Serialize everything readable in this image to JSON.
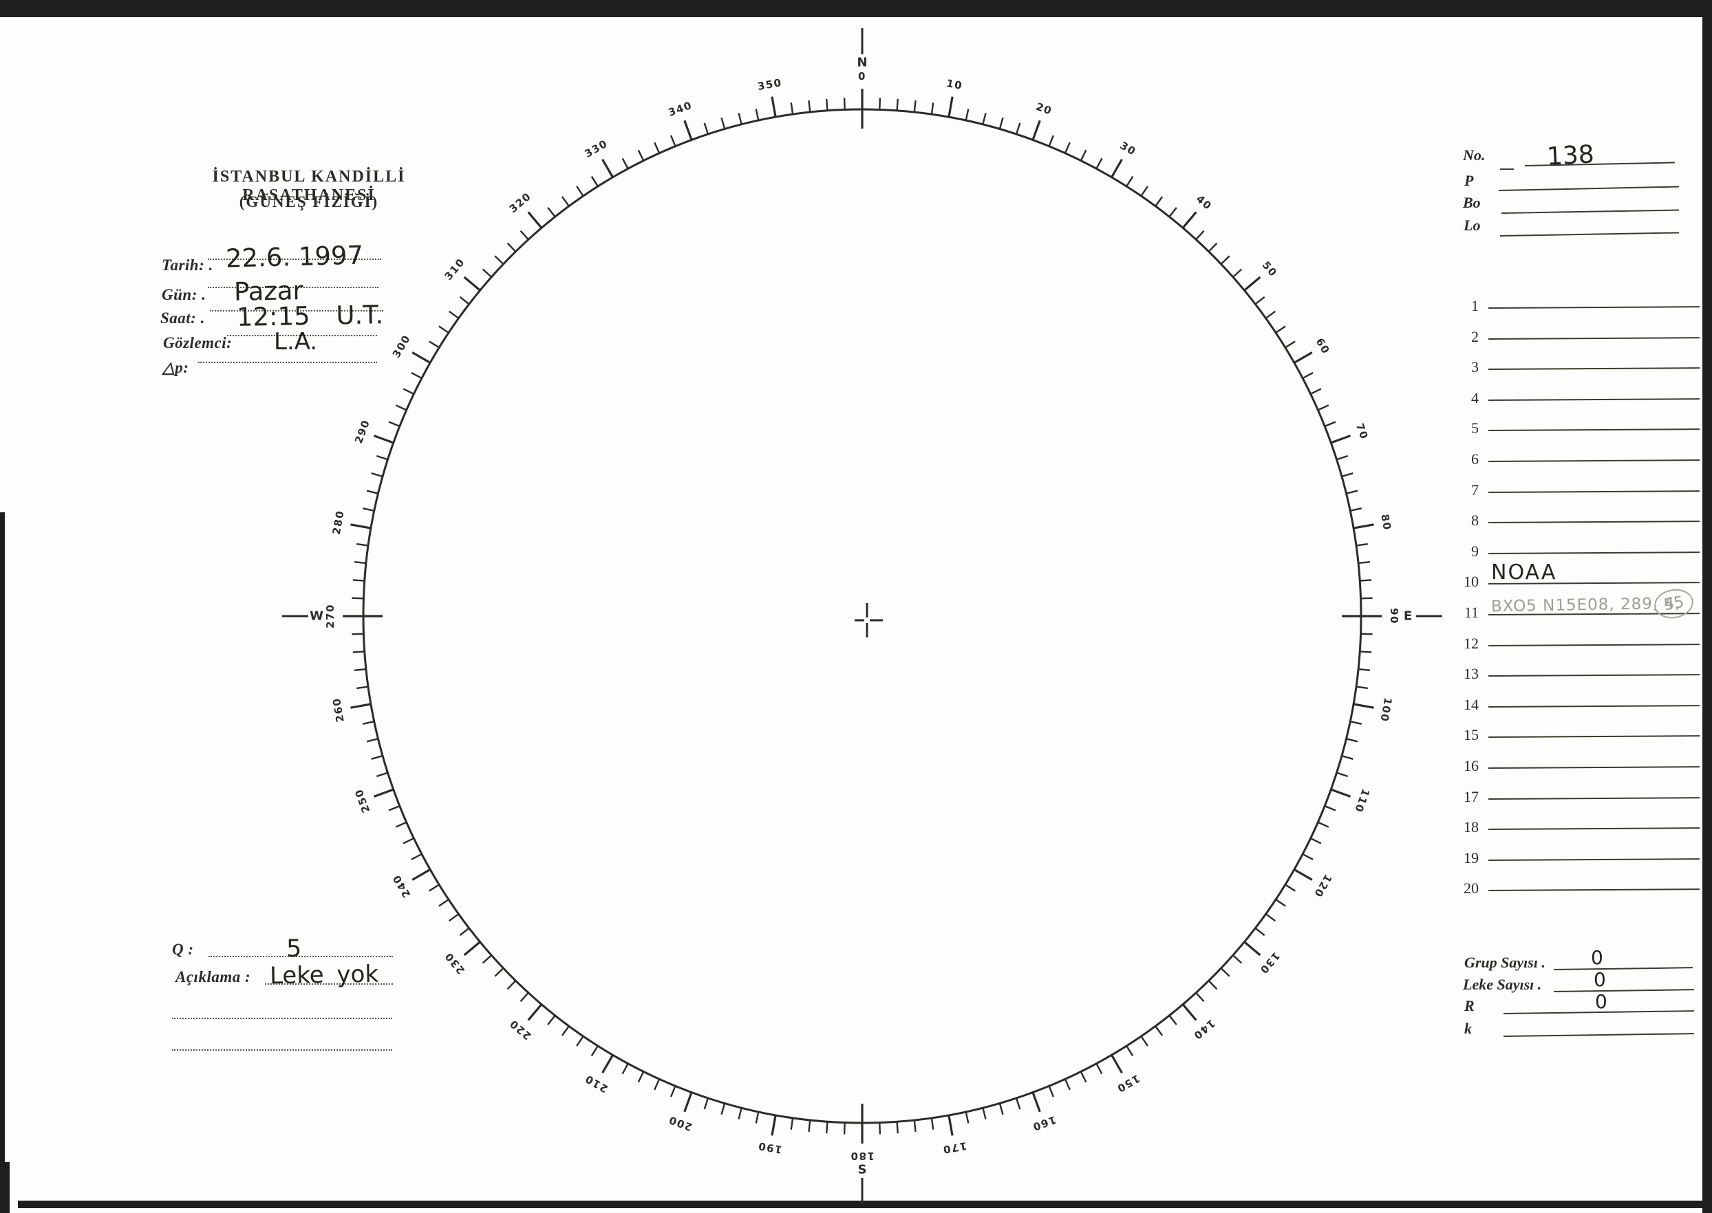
{
  "header": {
    "title_line1": "İSTANBUL KANDİLLİ RASATHANESİ",
    "title_line2": "(GÜNEŞ FİZİĞİ)"
  },
  "observation_fields": [
    {
      "label": "Tarih: .",
      "value": "22.6. 1997"
    },
    {
      "label": "Gün: .",
      "value": "Pazar"
    },
    {
      "label": "Saat: .",
      "value": "12:15 U.T."
    },
    {
      "label": "Gözlemci:",
      "value": "L.A."
    },
    {
      "label": "△p:",
      "value": ""
    }
  ],
  "registry": {
    "no_label": "No.",
    "no_value": "138",
    "p_label": "P",
    "p_value": "",
    "bo_label": "Bo",
    "bo_value": "",
    "lo_label": "Lo",
    "lo_value": ""
  },
  "region_list": {
    "rows": [
      {
        "num": "1",
        "text": ""
      },
      {
        "num": "2",
        "text": ""
      },
      {
        "num": "3",
        "text": ""
      },
      {
        "num": "4",
        "text": ""
      },
      {
        "num": "5",
        "text": ""
      },
      {
        "num": "6",
        "text": ""
      },
      {
        "num": "7",
        "text": ""
      },
      {
        "num": "8",
        "text": ""
      },
      {
        "num": "9",
        "text": ""
      },
      {
        "num": "10",
        "text": "NOAA"
      },
      {
        "num": "11",
        "text": "BXO5 N15E08, 289, 4,",
        "pencil": true,
        "circled": "55"
      },
      {
        "num": "12",
        "text": ""
      },
      {
        "num": "13",
        "text": ""
      },
      {
        "num": "14",
        "text": ""
      },
      {
        "num": "15",
        "text": ""
      },
      {
        "num": "16",
        "text": ""
      },
      {
        "num": "17",
        "text": ""
      },
      {
        "num": "18",
        "text": ""
      },
      {
        "num": "19",
        "text": ""
      },
      {
        "num": "20",
        "text": ""
      }
    ]
  },
  "summary": {
    "q_label": "Q :",
    "q_value": "5",
    "aciklama_label": "Açıklama :",
    "aciklama_value": "Leke yok"
  },
  "counts": {
    "grup_label": "Grup Sayısı .",
    "grup_value": "0",
    "leke_label": "Leke Sayısı .",
    "leke_value": "0",
    "r_label": "R",
    "r_value": "0",
    "k_label": "k",
    "k_value": ""
  },
  "protractor": {
    "minor_step": 2,
    "major_step": 10,
    "degree_labels": [
      "10",
      "20",
      "30",
      "40",
      "50",
      "60",
      "70",
      "80",
      "100",
      "110",
      "120",
      "130",
      "140",
      "150",
      "160",
      "170",
      "190",
      "200",
      "210",
      "220",
      "230",
      "240",
      "250",
      "260",
      "280",
      "290",
      "300",
      "310",
      "320",
      "330",
      "340",
      "350"
    ],
    "cardinals": [
      {
        "angle": 0,
        "number": "0",
        "letter": "N"
      },
      {
        "angle": 90,
        "number": "90",
        "letter": "E"
      },
      {
        "angle": 180,
        "number": "180",
        "letter": "S"
      },
      {
        "angle": 270,
        "number": "270",
        "letter": "W"
      }
    ]
  },
  "colors": {
    "ink": "#2b2b28",
    "pencil": "#a09d96",
    "paper": "#fdfdfb"
  }
}
